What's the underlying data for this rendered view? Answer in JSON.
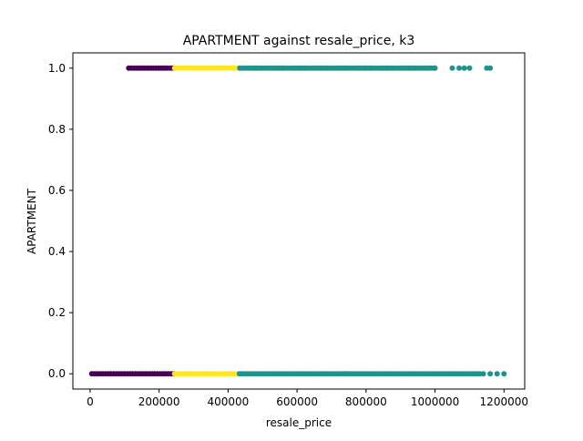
{
  "colors": {
    "purple": "#440154",
    "teal": "#21918c",
    "yellow": "#fde725",
    "axis": "#000000",
    "background": "#ffffff"
  },
  "chart_data": {
    "type": "scatter",
    "title": "APARTMENT against resale_price, k3",
    "xlabel": "resale_price",
    "ylabel": "APARTMENT",
    "xlim": [
      -50000,
      1260000
    ],
    "ylim": [
      -0.05,
      1.05
    ],
    "xticks": [
      0,
      200000,
      400000,
      600000,
      800000,
      1000000,
      1200000
    ],
    "xtick_labels": [
      "0",
      "200000",
      "400000",
      "600000",
      "800000",
      "1000000",
      "1200000"
    ],
    "yticks": [
      0.0,
      0.2,
      0.4,
      0.6,
      0.8,
      1.0
    ],
    "ytick_labels": [
      "0.0",
      "0.2",
      "0.4",
      "0.6",
      "0.8",
      "1.0"
    ],
    "grid": false,
    "legend": "none",
    "series": [
      {
        "color": "#440154",
        "segments": [
          {
            "y": 1.0,
            "x_min": 112000,
            "x_max": 244000
          },
          {
            "y": 0.0,
            "x_min": 5000,
            "x_max": 244000
          }
        ],
        "outliers": []
      },
      {
        "color": "#fde725",
        "segments": [
          {
            "y": 1.0,
            "x_min": 245000,
            "x_max": 433000
          },
          {
            "y": 0.0,
            "x_min": 245000,
            "x_max": 432000
          }
        ],
        "outliers": []
      },
      {
        "color": "#21918c",
        "segments": [
          {
            "y": 1.0,
            "x_min": 434000,
            "x_max": 1000000
          },
          {
            "y": 0.0,
            "x_min": 433000,
            "x_max": 1130000
          }
        ],
        "outliers": [
          {
            "x": 1050000,
            "y": 1.0
          },
          {
            "x": 1070000,
            "y": 1.0
          },
          {
            "x": 1085000,
            "y": 1.0
          },
          {
            "x": 1100000,
            "y": 1.0
          },
          {
            "x": 1150000,
            "y": 1.0
          },
          {
            "x": 1160000,
            "y": 1.0
          },
          {
            "x": 1140000,
            "y": 0.0
          },
          {
            "x": 1160000,
            "y": 0.0
          },
          {
            "x": 1180000,
            "y": 0.0
          },
          {
            "x": 1200000,
            "y": 0.0
          }
        ]
      }
    ]
  }
}
